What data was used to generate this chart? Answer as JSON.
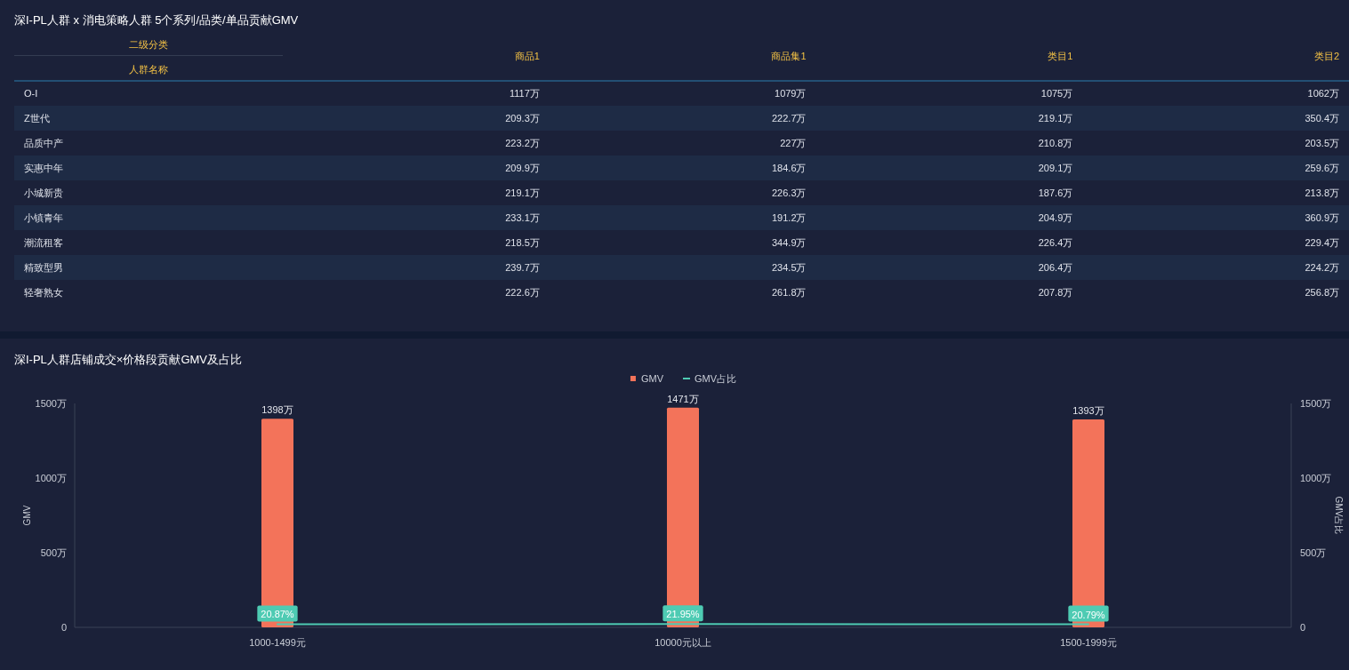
{
  "chart_data": [
    {
      "type": "other",
      "title": "深I-PL人群 x 消电策略人群 5个系列/品类/单品贡献GMV",
      "xlabel": "二级分类",
      "ylabel": "人群名称",
      "categories": [
        "商品1",
        "商品集1",
        "类目1",
        "类目2"
      ],
      "y_categories": [
        "O-I",
        "Z世代",
        "品质中产",
        "实惠中年",
        "小城新贵",
        "小镇青年",
        "潮流租客",
        "精致型男",
        "轻奢熟女"
      ],
      "cell_labels": [
        [
          "1117万",
          "1079万",
          "1075万",
          "1062万"
        ],
        [
          "209.3万",
          "222.7万",
          "219.1万",
          "350.4万"
        ],
        [
          "223.2万",
          "227万",
          "210.8万",
          "203.5万"
        ],
        [
          "209.9万",
          "184.6万",
          "209.1万",
          "259.6万"
        ],
        [
          "219.1万",
          "226.3万",
          "187.6万",
          "213.8万"
        ],
        [
          "233.1万",
          "191.2万",
          "204.9万",
          "360.9万"
        ],
        [
          "218.5万",
          "344.9万",
          "226.4万",
          "229.4万"
        ],
        [
          "239.7万",
          "234.5万",
          "206.4万",
          "224.2万"
        ],
        [
          "222.6万",
          "261.8万",
          "207.8万",
          "256.8万"
        ]
      ]
    },
    {
      "type": "bar",
      "title": "深I-PL人群店铺成交×价格段贡献GMV及占比",
      "categories": [
        "1000-1499元",
        "10000元以上",
        "1500-1999元"
      ],
      "series": [
        {
          "name": "GMV",
          "color": "#f3735a",
          "values": [
            1398,
            1471,
            1393
          ],
          "value_labels": [
            "1398万",
            "1471万",
            "1393万"
          ]
        },
        {
          "name": "GMV占比",
          "type": "line",
          "axis": "y2",
          "color": "#4ecbb3",
          "values": [
            20.87,
            21.95,
            20.79
          ],
          "value_labels": [
            "20.87%",
            "21.95%",
            "20.79%"
          ]
        }
      ],
      "ylabel": "GMV",
      "y2label": "GMV占比",
      "ylim": [
        0,
        1500
      ],
      "yticks": [
        0,
        {
          "value": 500,
          "label": "500万"
        },
        {
          "value": 1000,
          "label": "1000万"
        },
        {
          "value": 1500,
          "label": "1500万"
        }
      ],
      "y2lim": [
        0,
        1500
      ],
      "y2ticks": [
        0,
        {
          "value": 500,
          "label": "500万"
        },
        {
          "value": 1000,
          "label": "1000万"
        },
        {
          "value": 1500,
          "label": "1500万"
        }
      ],
      "legend": "top"
    }
  ]
}
